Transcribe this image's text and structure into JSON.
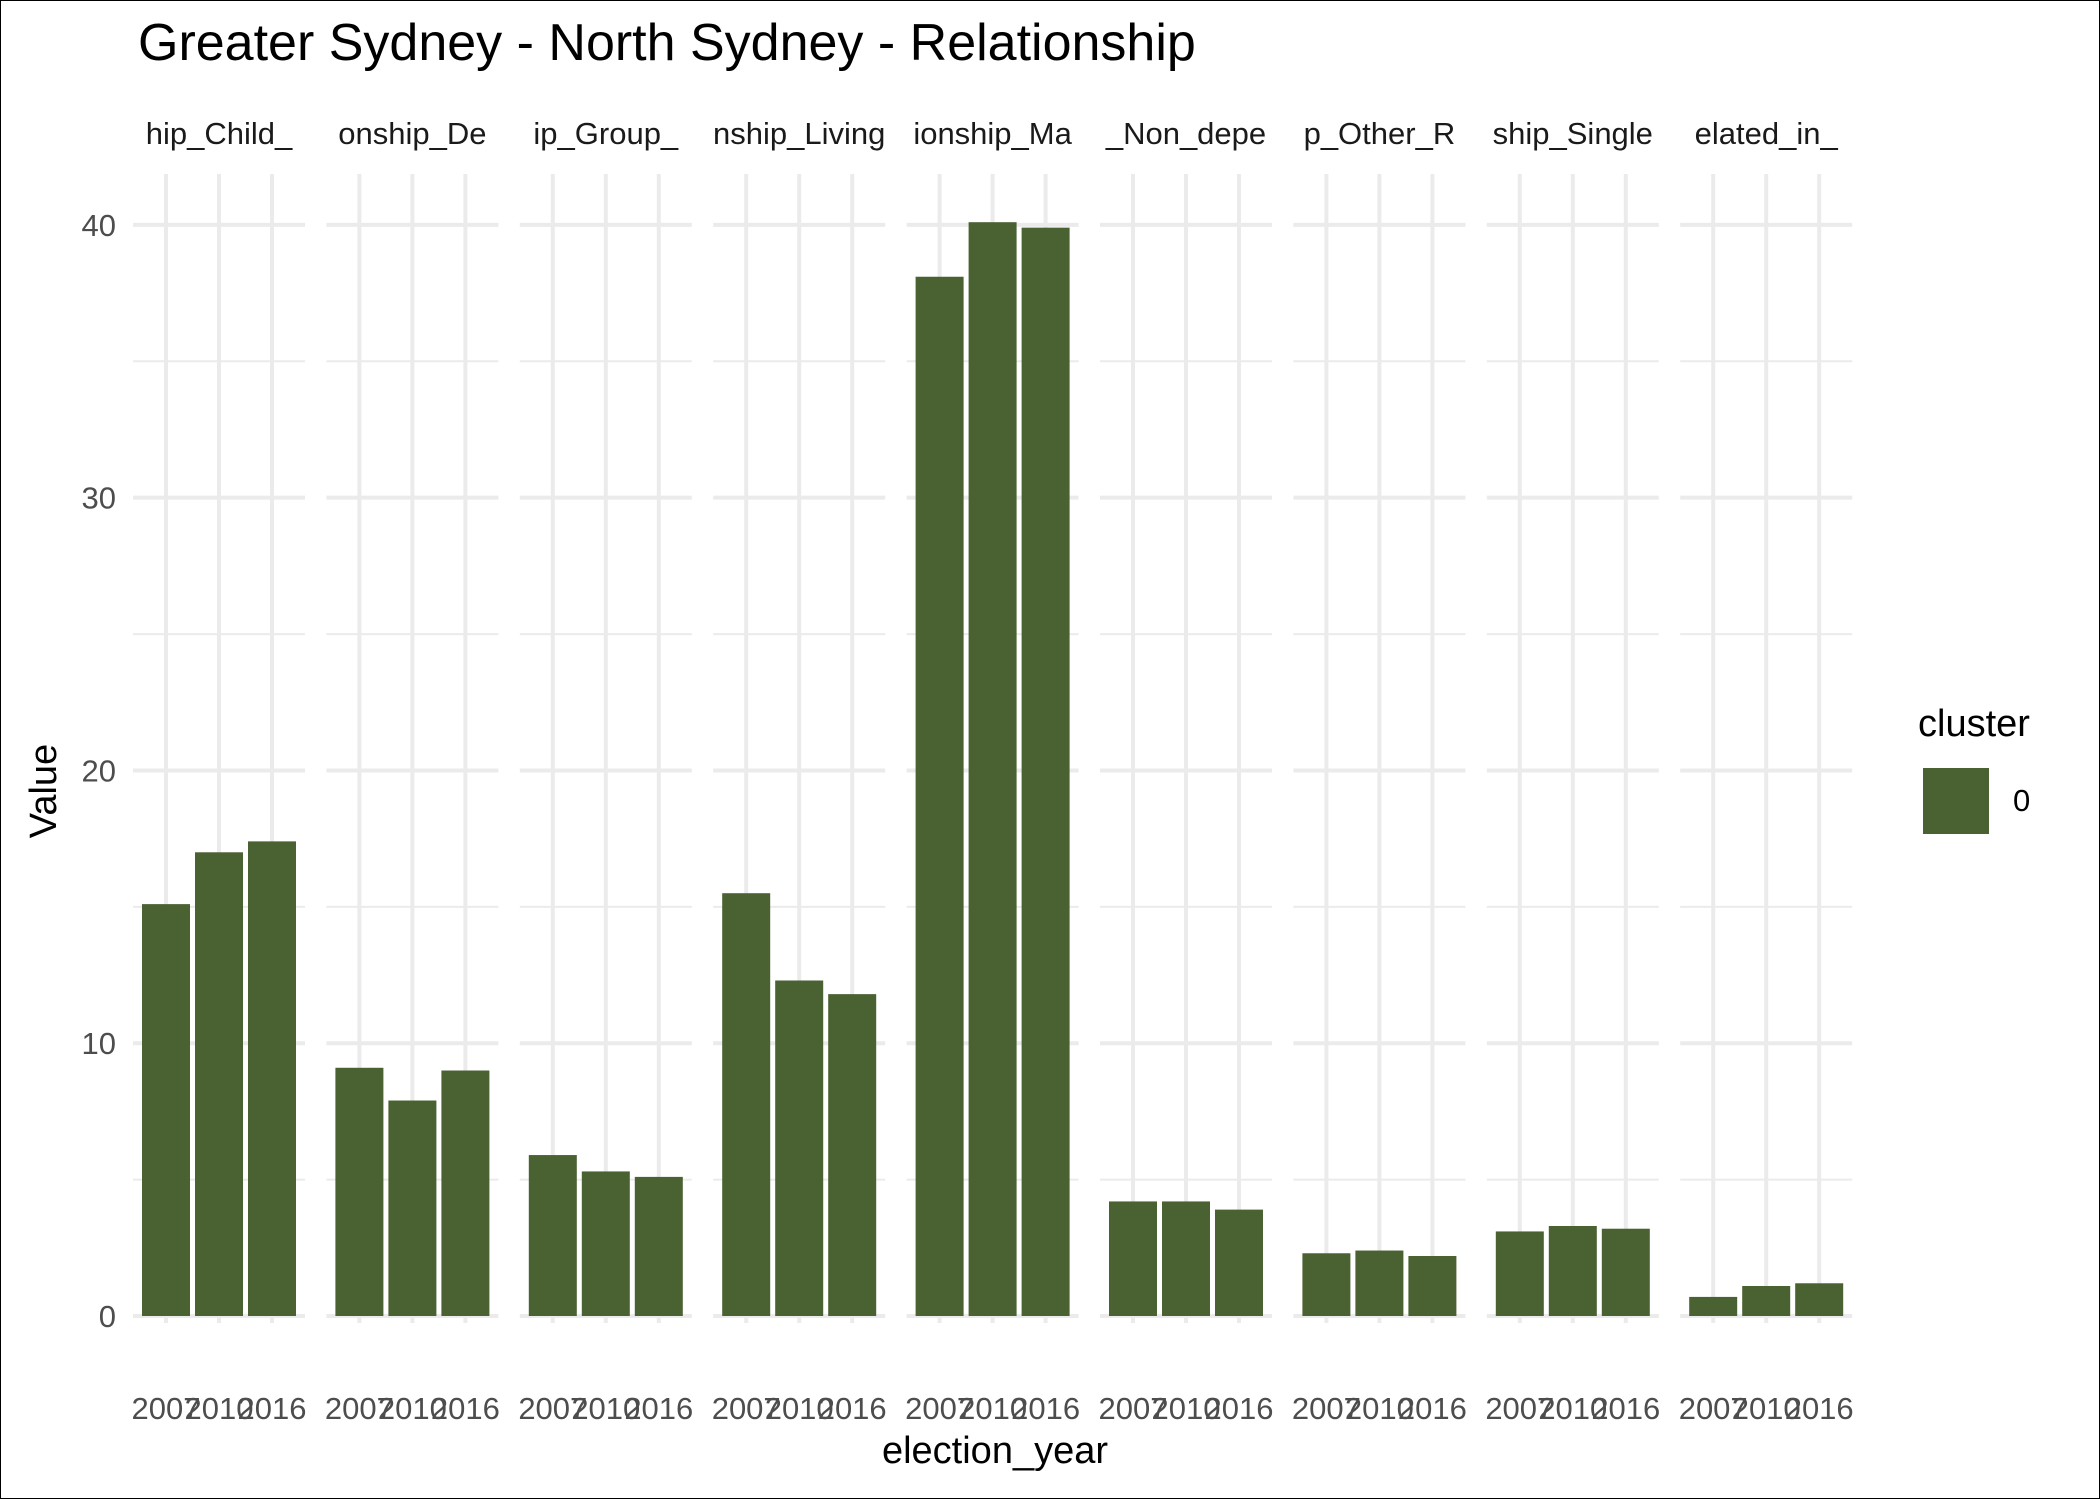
{
  "chart_data": {
    "type": "bar",
    "title": "Greater Sydney - North Sydney - Relationship",
    "xlabel": "election_year",
    "ylabel": "Value",
    "ylim": [
      0,
      41.5
    ],
    "y_ticks": [
      0,
      10,
      20,
      30,
      40
    ],
    "x_tick_labels": [
      "2007",
      "2010",
      "2016"
    ],
    "grid": true,
    "legend": {
      "title": "cluster",
      "position": "right",
      "entries": [
        "0"
      ]
    },
    "colors": {
      "bar": "#4a6132",
      "grid": "#ebebeb",
      "text": "#4d4d4d"
    },
    "panels": [
      {
        "label": "hip_Child_",
        "values": [
          15.1,
          17.0,
          17.4
        ]
      },
      {
        "label": "onship_De",
        "values": [
          9.1,
          7.9,
          9.0
        ]
      },
      {
        "label": "ip_Group_",
        "values": [
          5.9,
          5.3,
          5.1
        ]
      },
      {
        "label": "nship_Living",
        "values": [
          15.5,
          12.3,
          11.8
        ]
      },
      {
        "label": "ionship_Ma",
        "values": [
          38.1,
          40.1,
          39.9
        ]
      },
      {
        "label": "_Non_depe",
        "values": [
          4.2,
          4.2,
          3.9
        ]
      },
      {
        "label": "p_Other_R",
        "values": [
          2.3,
          2.4,
          2.2
        ]
      },
      {
        "label": "ship_Single",
        "values": [
          3.1,
          3.3,
          3.2
        ]
      },
      {
        "label": "elated_in_",
        "values": [
          0.7,
          1.1,
          1.2
        ]
      }
    ]
  }
}
